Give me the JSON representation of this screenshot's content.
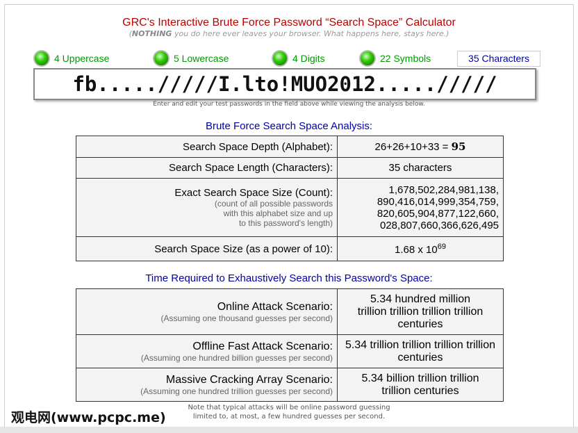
{
  "header": {
    "title": "GRC's Interactive Brute Force Password “Search Space” Calculator",
    "sub_bold": "NOTHING",
    "sub_rest": " you do here ever leaves your browser. What happens here, stays here.)",
    "sub_open": "("
  },
  "categories": [
    {
      "label": "4 Uppercase",
      "icon": "green-led-icon"
    },
    {
      "label": "5 Lowercase",
      "icon": "green-led-icon"
    },
    {
      "label": "4 Digits",
      "icon": "green-led-icon"
    },
    {
      "label": "22 Symbols",
      "icon": "green-led-icon"
    }
  ],
  "char_count": "35 Characters",
  "password": "fb...../////I.lto!MUO2012...../////",
  "hint": "Enter and edit your test passwords in the field above while viewing the analysis below.",
  "analysis": {
    "heading": "Brute Force Search Space Analysis:",
    "depth_label": "Search Space Depth (Alphabet):",
    "depth_value": "26+26+10+33 = ",
    "depth_total": "95",
    "length_label": "Search Space Length (Characters):",
    "length_value": "35 characters",
    "size_label": "Exact Search Space Size (Count):",
    "size_note1": "(count of all possible passwords",
    "size_note2": "with this alphabet size and up",
    "size_note3": "to this password's length)",
    "size_lines": [
      "1,678,502,284,981,138,",
      "890,416,014,999,354,759,",
      "820,605,904,877,122,660,",
      "028,807,660,366,626,495"
    ],
    "power_label": "Search Space Size (as a power of 10):",
    "power_value": "1.68 x 10",
    "power_exp": "69"
  },
  "time": {
    "heading": "Time Required to Exhaustively Search this Password's Space:",
    "rows": [
      {
        "label": "Online Attack Scenario:",
        "note": "(Assuming one thousand guesses per second)",
        "value": "5.34 hundred million trillion trillion trillion trillion centuries"
      },
      {
        "label": "Offline Fast Attack Scenario:",
        "note": "(Assuming one hundred billion guesses per second)",
        "value": "5.34 trillion trillion trillion trillion centuries"
      },
      {
        "label": "Massive Cracking Array Scenario:",
        "note": "(Assuming one hundred trillion guesses per second)",
        "value": "5.34 billion trillion trillion trillion centuries"
      }
    ]
  },
  "note": {
    "line1": "Note that typical attacks will be online password guessing",
    "line2": "limited to, at most, a few hundred guesses per second."
  },
  "watermark": "观电网(www.pcpc.me)"
}
